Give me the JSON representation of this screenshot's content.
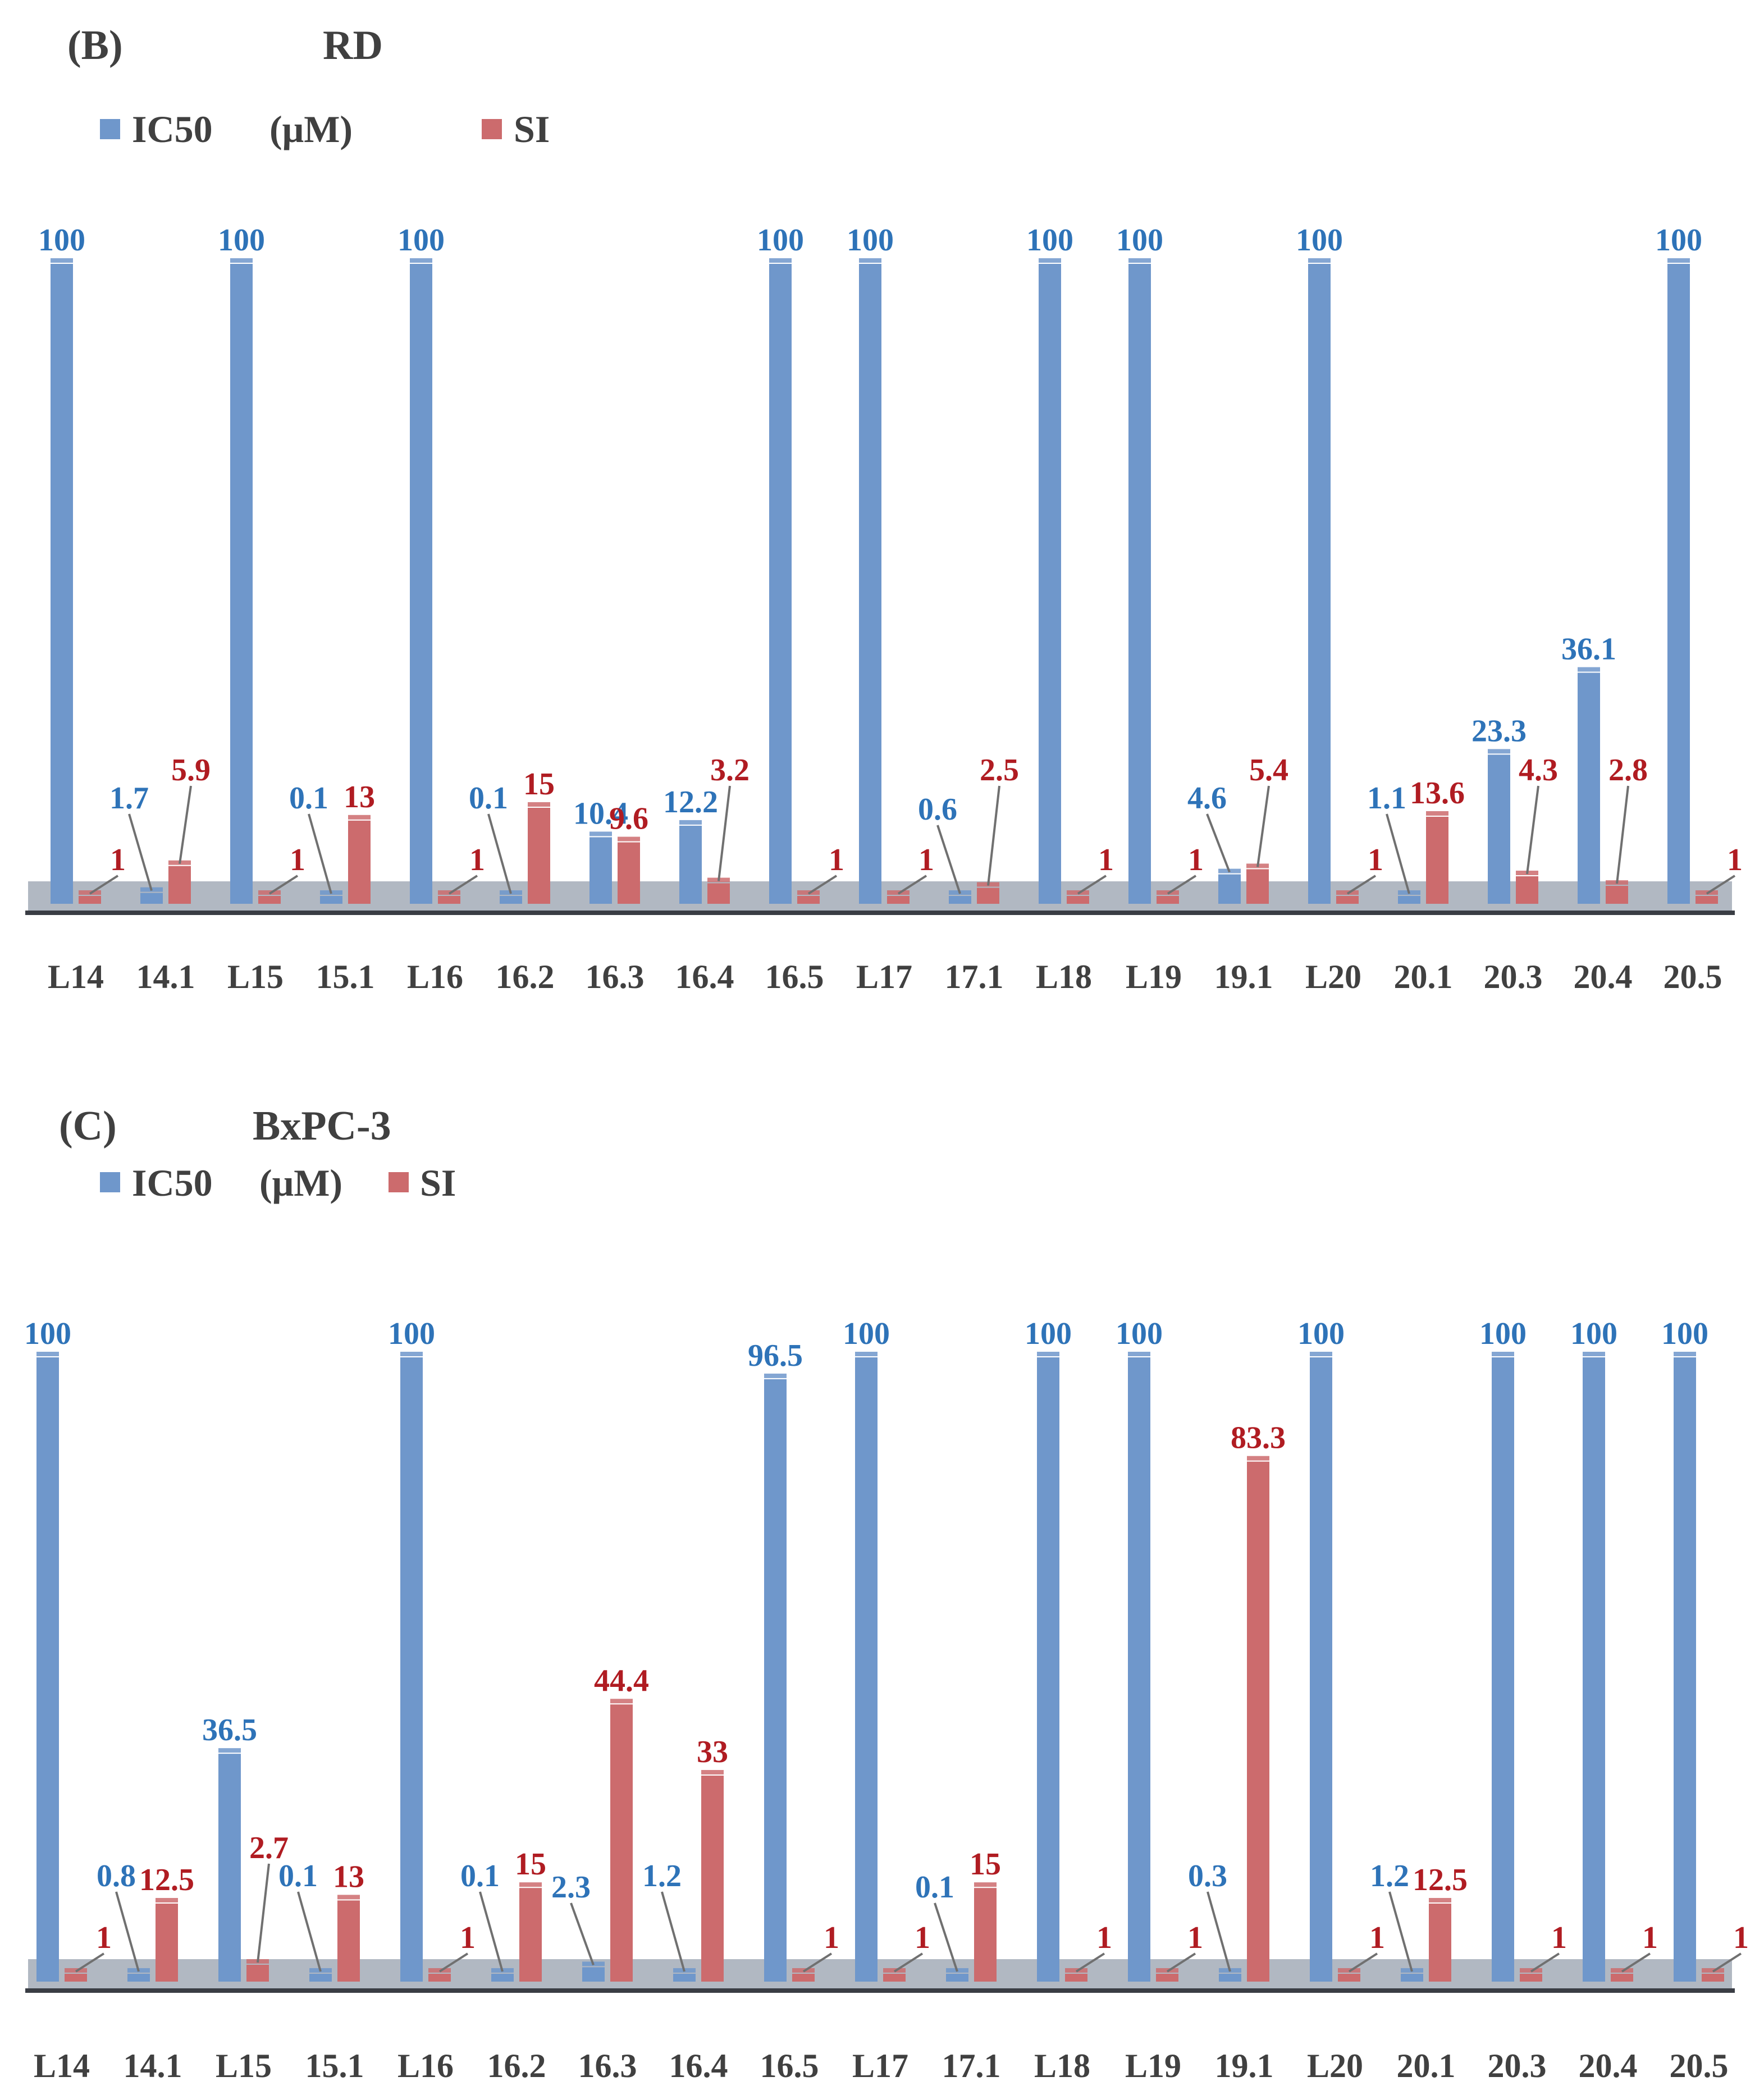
{
  "colors": {
    "ic50": "#6f97cb",
    "si": "#cc6b6d",
    "ic50_label": "#2e73b8",
    "si_label": "#b01c22",
    "text": "#404040",
    "floor": "#a9b0bb",
    "axis": "#3a3d44"
  },
  "legend": {
    "ic50_label": "IC50",
    "unit_label": "(μM)",
    "si_label": "SI"
  },
  "chart_data": [
    {
      "type": "bar",
      "panel": "(B)",
      "cell_line": "RD",
      "categories": [
        "L14",
        "14.1",
        "L15",
        "15.1",
        "L16",
        "16.2",
        "16.3",
        "16.4",
        "16.5",
        "L17",
        "17.1",
        "L18",
        "L19",
        "19.1",
        "L20",
        "20.1",
        "20.3",
        "20.4",
        "20.5"
      ],
      "series": [
        {
          "name": "IC50 (μM)",
          "values": [
            100,
            1.7,
            100,
            0.1,
            100,
            0.1,
            10.4,
            12.2,
            100,
            100,
            0.6,
            100,
            100,
            4.6,
            100,
            1.1,
            23.3,
            36.1,
            100
          ],
          "labels": [
            "100",
            "1.7",
            "100",
            "0.1",
            "100",
            "0.1",
            "10.4",
            "12.2",
            "100",
            "100",
            "0.6",
            "100",
            "100",
            "4.6",
            "100",
            "1.1",
            "23.3",
            "36.1",
            "100"
          ]
        },
        {
          "name": "SI",
          "values": [
            1,
            5.9,
            1,
            13,
            1,
            15,
            9.6,
            3.2,
            1,
            1,
            2.5,
            1,
            1,
            5.4,
            1,
            13.6,
            4.3,
            2.8,
            1
          ],
          "labels": [
            "1",
            "5.9",
            "1",
            "13",
            "1",
            "15",
            "9.6",
            "3.2",
            "1",
            "1",
            "2.5",
            "1",
            "1",
            "5.4",
            "1",
            "13.6",
            "4.3",
            "2.8",
            "1"
          ]
        }
      ],
      "ylim": [
        0,
        100
      ],
      "xlabel": "",
      "ylabel": "",
      "legend_position": "top-left"
    },
    {
      "type": "bar",
      "panel": "(C)",
      "cell_line": "BxPC-3",
      "categories": [
        "L14",
        "14.1",
        "L15",
        "15.1",
        "L16",
        "16.2",
        "16.3",
        "16.4",
        "16.5",
        "L17",
        "17.1",
        "L18",
        "L19",
        "19.1",
        "L20",
        "20.1",
        "20.3",
        "20.4",
        "20.5"
      ],
      "series": [
        {
          "name": "IC50 (μM)",
          "values": [
            100,
            0.8,
            36.5,
            0.1,
            100,
            0.1,
            2.3,
            1.2,
            96.5,
            100,
            0.1,
            100,
            100,
            0.3,
            100,
            1.2,
            100,
            100,
            100
          ],
          "labels": [
            "100",
            "0.8",
            "36.5",
            "0.1",
            "100",
            "0.1",
            "2.3",
            "1.2",
            "96.5",
            "100",
            "0.1",
            "100",
            "100",
            "0.3",
            "100",
            "1.2",
            "100",
            "100",
            "100"
          ]
        },
        {
          "name": "SI",
          "values": [
            1,
            12.5,
            2.7,
            13,
            1,
            15,
            44.4,
            33,
            1,
            1,
            15,
            1,
            1,
            83.3,
            1,
            12.5,
            1,
            1,
            1
          ],
          "labels": [
            "1",
            "12.5",
            "2.7",
            "13",
            "1",
            "15",
            "44.4",
            "33",
            "1",
            "1",
            "15",
            "1",
            "1",
            "83.3",
            "1",
            "12.5",
            "1",
            "1",
            "1"
          ]
        }
      ],
      "ylim": [
        0,
        100
      ],
      "xlabel": "",
      "ylabel": "",
      "legend_position": "top-left"
    }
  ]
}
